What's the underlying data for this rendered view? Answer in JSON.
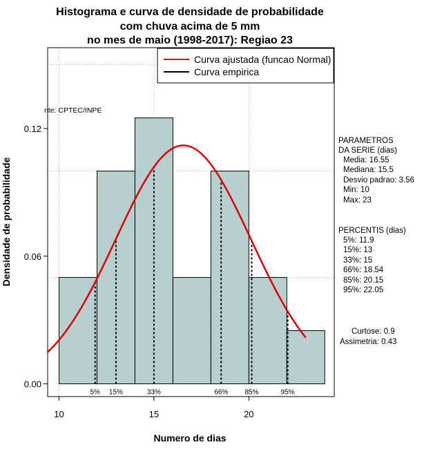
{
  "chart_data": {
    "type": "bar",
    "title_lines": [
      "Histograma e curva de densidade de probabilidade",
      "com chuva acima de 5 mm",
      "no mes de maio (1998-2017): Regiao 23"
    ],
    "xlabel": "Numero de dias",
    "ylabel": "Densidade de probabilidade",
    "xlim": [
      9.4,
      24.5
    ],
    "ylim": [
      -0.006,
      0.158
    ],
    "x_ticks": [
      10,
      15,
      20
    ],
    "y_ticks": [
      0.0,
      0.06,
      0.12
    ],
    "y_tick_labels": [
      "0.00",
      "0.06",
      "0.12"
    ],
    "grid": true,
    "bins": [
      {
        "from": 10,
        "to": 12,
        "density": 0.05
      },
      {
        "from": 12,
        "to": 14,
        "density": 0.1
      },
      {
        "from": 14,
        "to": 16,
        "density": 0.125
      },
      {
        "from": 16,
        "to": 18,
        "density": 0.05
      },
      {
        "from": 18,
        "to": 20,
        "density": 0.1
      },
      {
        "from": 20,
        "to": 22,
        "density": 0.05
      },
      {
        "from": 22,
        "to": 24,
        "density": 0.025
      }
    ],
    "bar_color": "#b7cfcf",
    "curve_color": "#e00000",
    "normal_fit": {
      "mean": 16.55,
      "sd": 3.56,
      "x_range": [
        9.4,
        23
      ]
    },
    "percentile_lines": [
      {
        "label": "5%",
        "x": 11.9
      },
      {
        "label": "15%",
        "x": 13
      },
      {
        "label": "33%",
        "x": 15
      },
      {
        "label": "66%",
        "x": 18.54
      },
      {
        "label": "85%",
        "x": 20.15
      },
      {
        "label": "95%",
        "x": 22.05
      }
    ],
    "legend": {
      "position": "top-right",
      "entries": [
        {
          "label": "Curva ajustada (funcao Normal)",
          "color": "#e00000"
        },
        {
          "label": "Curva empirica",
          "color": "#000000"
        }
      ]
    },
    "source_text": "nte: CPTEC/INPE"
  },
  "stats": {
    "params_title_1": "PARAMETROS",
    "params_title_2": "DA SERIE (dias)",
    "media": "Media: 16.55",
    "mediana": "Mediana: 15.5",
    "desvio": "Desvio padrao: 3.56",
    "min": "Min: 10",
    "max": "Max: 23",
    "percentis_title": "PERCENTIS (dias)",
    "p5": "5%: 11.9",
    "p15": "15%: 13",
    "p33": "33%: 15",
    "p66": "66%: 18.54",
    "p85": "85%: 20.15",
    "p95": "95%: 22.05",
    "curtose": "Curtose: 0.9",
    "assimetria": "Assimetria: 0.43"
  }
}
